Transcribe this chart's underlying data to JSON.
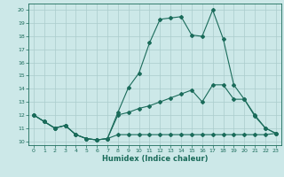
{
  "xlabel": "Humidex (Indice chaleur)",
  "xlim": [
    -0.5,
    23.5
  ],
  "ylim": [
    9.7,
    20.5
  ],
  "xticks": [
    0,
    1,
    2,
    3,
    4,
    5,
    6,
    7,
    8,
    9,
    10,
    11,
    12,
    13,
    14,
    15,
    16,
    17,
    18,
    19,
    20,
    21,
    22,
    23
  ],
  "yticks": [
    10,
    11,
    12,
    13,
    14,
    15,
    16,
    17,
    18,
    19,
    20
  ],
  "background_color": "#cce8e8",
  "grid_color": "#aacccc",
  "line_color": "#1a6b5a",
  "line1_y": [
    12.0,
    11.5,
    11.0,
    11.2,
    10.5,
    10.2,
    10.1,
    10.2,
    10.5,
    10.5,
    10.5,
    10.5,
    10.5,
    10.5,
    10.5,
    10.5,
    10.5,
    10.5,
    10.5,
    10.5,
    10.5,
    10.5,
    10.5,
    10.6
  ],
  "line2_y": [
    12.0,
    11.5,
    11.0,
    11.2,
    10.5,
    10.2,
    10.1,
    10.2,
    12.0,
    12.2,
    12.5,
    12.7,
    13.0,
    13.3,
    13.6,
    13.9,
    13.0,
    14.3,
    14.3,
    13.2,
    13.2,
    12.0,
    11.0,
    10.6
  ],
  "line3_y": [
    12.0,
    11.5,
    11.0,
    11.2,
    10.5,
    10.2,
    10.1,
    10.2,
    12.2,
    14.1,
    15.2,
    17.5,
    19.3,
    19.4,
    19.5,
    18.1,
    18.0,
    20.0,
    17.8,
    14.3,
    13.2,
    11.9,
    11.0,
    10.6
  ]
}
